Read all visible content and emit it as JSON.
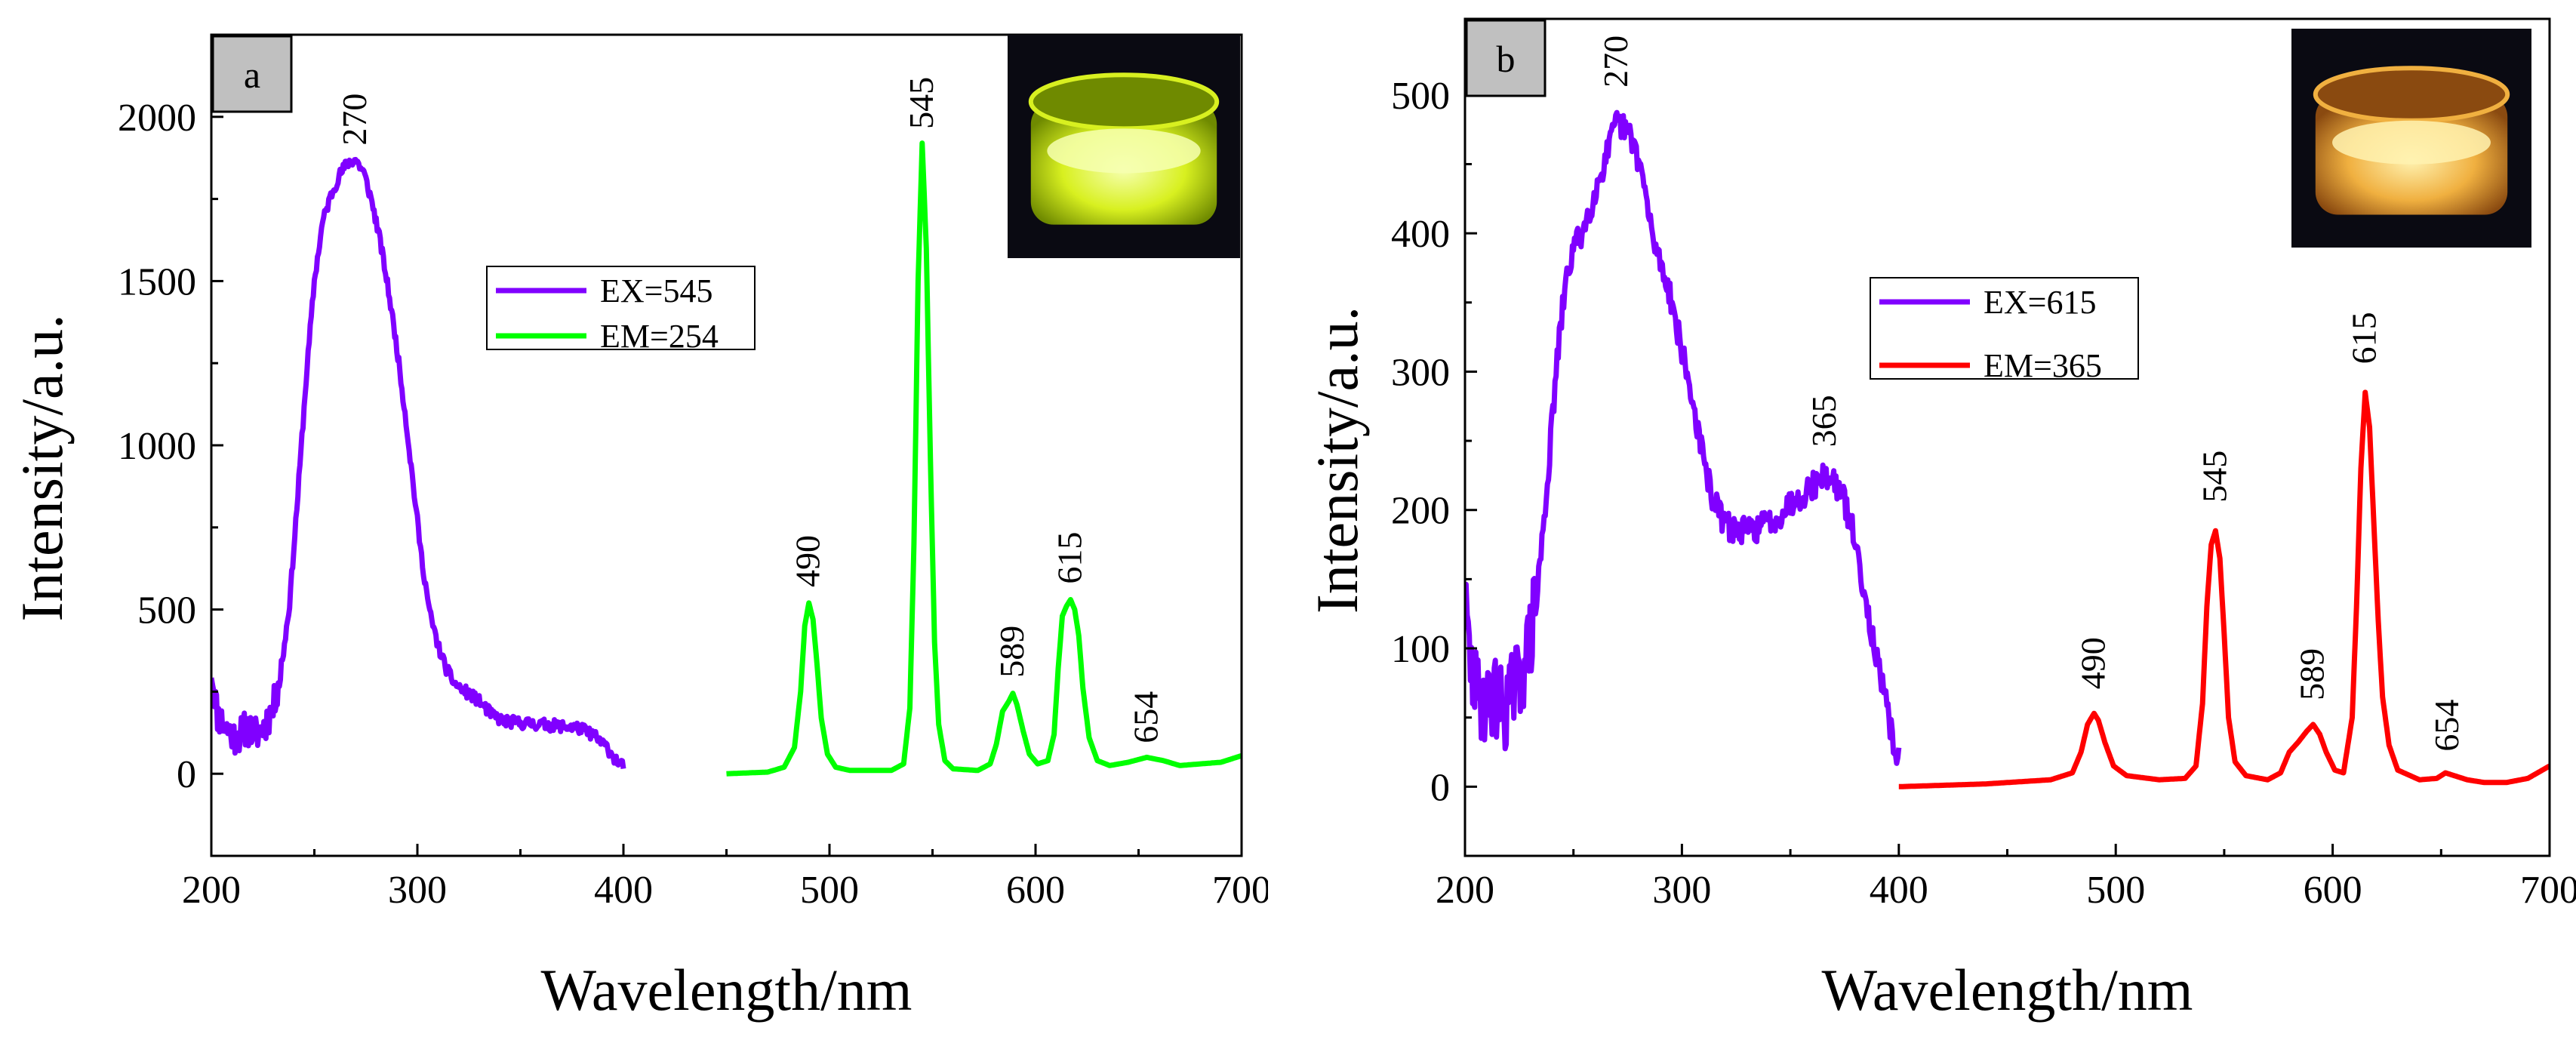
{
  "chart_data": [
    {
      "type": "line",
      "panel_label": "a",
      "xlabel": "Wavelength/nm",
      "ylabel": "Intensity/a.u.",
      "xlim": [
        200,
        700
      ],
      "ylim": [
        -250,
        2250
      ],
      "xticks": [
        200,
        300,
        400,
        500,
        600,
        700
      ],
      "yticks": [
        0,
        500,
        1000,
        1500,
        2000
      ],
      "inset": "photo of yellow-green luminescent powder in a glass vial",
      "legend": {
        "position": "center",
        "entries": [
          "EX=545",
          "EM=254"
        ]
      },
      "series": [
        {
          "name": "EX=545",
          "color": "#8000ff",
          "noise": 18,
          "points": [
            [
              200,
              320
            ],
            [
              203,
              180
            ],
            [
              207,
              140
            ],
            [
              212,
              110
            ],
            [
              217,
              140
            ],
            [
              222,
              120
            ],
            [
              226,
              150
            ],
            [
              230,
              200
            ],
            [
              234,
              320
            ],
            [
              238,
              520
            ],
            [
              242,
              850
            ],
            [
              246,
              1200
            ],
            [
              250,
              1500
            ],
            [
              254,
              1680
            ],
            [
              258,
              1760
            ],
            [
              262,
              1820
            ],
            [
              266,
              1860
            ],
            [
              270,
              1870
            ],
            [
              274,
              1830
            ],
            [
              278,
              1740
            ],
            [
              282,
              1620
            ],
            [
              286,
              1470
            ],
            [
              290,
              1300
            ],
            [
              294,
              1100
            ],
            [
              298,
              880
            ],
            [
              302,
              660
            ],
            [
              306,
              490
            ],
            [
              310,
              390
            ],
            [
              314,
              320
            ],
            [
              318,
              275
            ],
            [
              322,
              255
            ],
            [
              326,
              240
            ],
            [
              330,
              220
            ],
            [
              336,
              180
            ],
            [
              342,
              160
            ],
            [
              350,
              155
            ],
            [
              360,
              150
            ],
            [
              370,
              145
            ],
            [
              378,
              140
            ],
            [
              385,
              120
            ],
            [
              392,
              80
            ],
            [
              396,
              45
            ],
            [
              400,
              20
            ]
          ]
        },
        {
          "name": "EM=254",
          "color": "#00ff00",
          "noise": 0,
          "points": [
            [
              450,
              0
            ],
            [
              470,
              5
            ],
            [
              478,
              20
            ],
            [
              483,
              80
            ],
            [
              486,
              250
            ],
            [
              488,
              450
            ],
            [
              490,
              520
            ],
            [
              492,
              470
            ],
            [
              494,
              330
            ],
            [
              496,
              170
            ],
            [
              499,
              60
            ],
            [
              503,
              20
            ],
            [
              510,
              10
            ],
            [
              530,
              10
            ],
            [
              536,
              30
            ],
            [
              539,
              200
            ],
            [
              541,
              700
            ],
            [
              543,
              1500
            ],
            [
              545,
              1920
            ],
            [
              547,
              1600
            ],
            [
              549,
              950
            ],
            [
              551,
              400
            ],
            [
              553,
              150
            ],
            [
              556,
              40
            ],
            [
              560,
              15
            ],
            [
              572,
              10
            ],
            [
              578,
              30
            ],
            [
              581,
              90
            ],
            [
              584,
              190
            ],
            [
              587,
              220
            ],
            [
              589,
              245
            ],
            [
              591,
              210
            ],
            [
              594,
              130
            ],
            [
              597,
              60
            ],
            [
              601,
              30
            ],
            [
              606,
              40
            ],
            [
              609,
              120
            ],
            [
              611,
              320
            ],
            [
              613,
              480
            ],
            [
              615,
              510
            ],
            [
              617,
              530
            ],
            [
              619,
              500
            ],
            [
              621,
              420
            ],
            [
              623,
              260
            ],
            [
              626,
              110
            ],
            [
              630,
              40
            ],
            [
              636,
              25
            ],
            [
              645,
              35
            ],
            [
              654,
              50
            ],
            [
              662,
              40
            ],
            [
              670,
              25
            ],
            [
              680,
              30
            ],
            [
              690,
              35
            ],
            [
              700,
              55
            ]
          ]
        }
      ],
      "peak_labels": [
        {
          "text": "270",
          "x": 270,
          "y": 1890
        },
        {
          "text": "490",
          "x": 490,
          "y": 545
        },
        {
          "text": "545",
          "x": 545,
          "y": 1940
        },
        {
          "text": "589",
          "x": 589,
          "y": 270
        },
        {
          "text": "615",
          "x": 617,
          "y": 555
        },
        {
          "text": "654",
          "x": 654,
          "y": 70
        }
      ]
    },
    {
      "type": "line",
      "panel_label": "b",
      "xlabel": "Wavelength/nm",
      "ylabel": "Intensity/a.u.",
      "xlim": [
        200,
        700
      ],
      "ylim": [
        -50,
        555
      ],
      "xticks": [
        200,
        300,
        400,
        500,
        600,
        700
      ],
      "yticks": [
        0,
        100,
        200,
        300,
        400,
        500
      ],
      "inset": "photo of orange luminescent powder in a glass vial",
      "legend": {
        "position": "center",
        "entries": [
          "EX=615",
          "EM=365"
        ]
      },
      "series": [
        {
          "name": "EX=615",
          "color": "#8000ff",
          "noise": 10,
          "points": [
            [
              200,
              130
            ],
            [
              203,
              80
            ],
            [
              206,
              65
            ],
            [
              210,
              60
            ],
            [
              214,
              65
            ],
            [
              218,
              55
            ],
            [
              222,
              70
            ],
            [
              226,
              80
            ],
            [
              230,
              105
            ],
            [
              234,
              150
            ],
            [
              238,
              220
            ],
            [
              242,
              300
            ],
            [
              246,
              360
            ],
            [
              250,
              390
            ],
            [
              254,
              400
            ],
            [
              258,
              420
            ],
            [
              262,
              440
            ],
            [
              266,
              460
            ],
            [
              270,
              480
            ],
            [
              274,
              475
            ],
            [
              278,
              465
            ],
            [
              282,
              440
            ],
            [
              286,
              400
            ],
            [
              290,
              380
            ],
            [
              294,
              360
            ],
            [
              298,
              330
            ],
            [
              302,
              300
            ],
            [
              306,
              270
            ],
            [
              310,
              235
            ],
            [
              314,
              210
            ],
            [
              318,
              195
            ],
            [
              322,
              187
            ],
            [
              326,
              185
            ],
            [
              332,
              185
            ],
            [
              338,
              190
            ],
            [
              344,
              195
            ],
            [
              350,
              205
            ],
            [
              356,
              212
            ],
            [
              362,
              220
            ],
            [
              366,
              225
            ],
            [
              370,
              222
            ],
            [
              374,
              210
            ],
            [
              378,
              190
            ],
            [
              382,
              160
            ],
            [
              386,
              125
            ],
            [
              390,
              90
            ],
            [
              394,
              60
            ],
            [
              397,
              35
            ],
            [
              400,
              20
            ]
          ]
        },
        {
          "name": "EM=365",
          "color": "#ff0000",
          "noise": 0,
          "points": [
            [
              400,
              0
            ],
            [
              440,
              2
            ],
            [
              470,
              5
            ],
            [
              480,
              10
            ],
            [
              484,
              25
            ],
            [
              487,
              45
            ],
            [
              490,
              53
            ],
            [
              492,
              48
            ],
            [
              495,
              32
            ],
            [
              499,
              15
            ],
            [
              505,
              8
            ],
            [
              520,
              5
            ],
            [
              532,
              6
            ],
            [
              537,
              15
            ],
            [
              540,
              60
            ],
            [
              542,
              130
            ],
            [
              544,
              175
            ],
            [
              546,
              185
            ],
            [
              548,
              165
            ],
            [
              550,
              110
            ],
            [
              552,
              50
            ],
            [
              555,
              18
            ],
            [
              560,
              8
            ],
            [
              570,
              5
            ],
            [
              576,
              10
            ],
            [
              580,
              25
            ],
            [
              584,
              32
            ],
            [
              588,
              40
            ],
            [
              591,
              45
            ],
            [
              594,
              38
            ],
            [
              597,
              25
            ],
            [
              601,
              12
            ],
            [
              605,
              10
            ],
            [
              609,
              50
            ],
            [
              611,
              130
            ],
            [
              613,
              230
            ],
            [
              615,
              285
            ],
            [
              617,
              260
            ],
            [
              619,
              190
            ],
            [
              621,
              120
            ],
            [
              623,
              65
            ],
            [
              626,
              30
            ],
            [
              630,
              12
            ],
            [
              640,
              5
            ],
            [
              648,
              6
            ],
            [
              652,
              10
            ],
            [
              656,
              8
            ],
            [
              662,
              5
            ],
            [
              670,
              3
            ],
            [
              680,
              3
            ],
            [
              690,
              6
            ],
            [
              700,
              15
            ]
          ]
        }
      ],
      "peak_labels": [
        {
          "text": "270",
          "x": 270,
          "y": 500
        },
        {
          "text": "365",
          "x": 366,
          "y": 240
        },
        {
          "text": "490",
          "x": 490,
          "y": 65
        },
        {
          "text": "545",
          "x": 546,
          "y": 200
        },
        {
          "text": "589",
          "x": 591,
          "y": 57
        },
        {
          "text": "615",
          "x": 615,
          "y": 300
        },
        {
          "text": "654",
          "x": 653,
          "y": 20
        }
      ]
    }
  ]
}
